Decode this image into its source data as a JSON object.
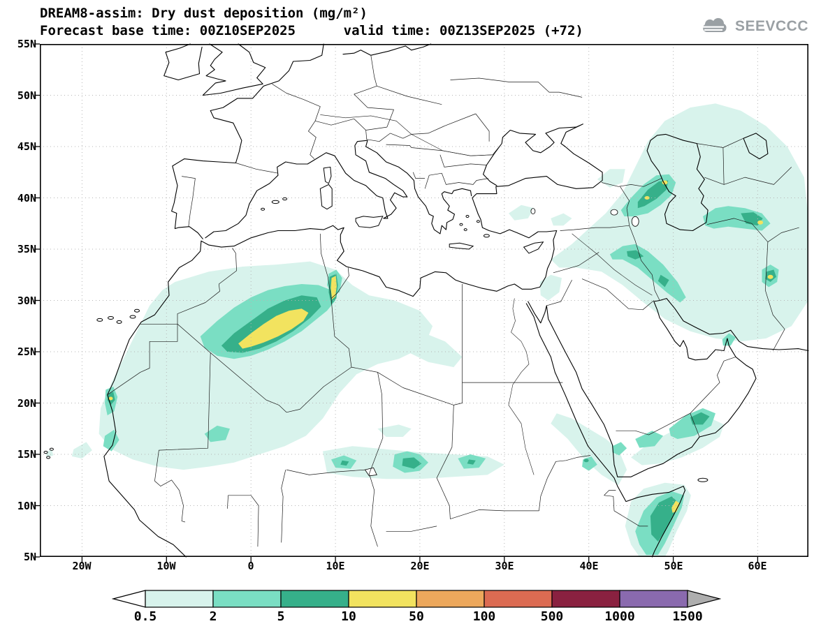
{
  "header": {
    "title_line1": "DREAM8-assim: Dry dust deposition (mg/m²)",
    "title_line2": "Forecast base time: 00Z10SEP2025      valid time: 00Z13SEP2025 (+72)",
    "logo_text": "SEEVCCC"
  },
  "axes": {
    "lat_labels": [
      "55N",
      "50N",
      "45N",
      "40N",
      "35N",
      "30N",
      "25N",
      "20N",
      "15N",
      "10N",
      "5N"
    ],
    "lon_labels": [
      "20W",
      "10W",
      "0",
      "10E",
      "20E",
      "30E",
      "40E",
      "50E",
      "60E"
    ]
  },
  "colorbar": {
    "labels": [
      "0.5",
      "2",
      "5",
      "10",
      "50",
      "100",
      "500",
      "1000",
      "1500"
    ]
  },
  "palette": {
    "c0": "#ffffff",
    "c1": "#d8f3ec",
    "c2": "#7adec3",
    "c3": "#36b08a",
    "c4": "#f2e35f",
    "c5": "#eda85c",
    "c6": "#dc6b52",
    "c7": "#8a2140",
    "c8": "#8a6aae",
    "c9": "#aeaeae"
  },
  "chart_data": {
    "type": "heatmap",
    "title": "DREAM8-assim: Dry dust deposition (mg/m²)",
    "model": "DREAM8-assim",
    "variable": "Dry dust deposition",
    "units": "mg/m²",
    "forecast_base_time": "00Z10SEP2025",
    "valid_time": "00Z13SEP2025",
    "lead_hours": 72,
    "projection": "latlon",
    "lon_range_deg": [
      -25,
      66
    ],
    "lat_range_deg": [
      5,
      55
    ],
    "lat_ticks": [
      "55N",
      "50N",
      "45N",
      "40N",
      "35N",
      "30N",
      "25N",
      "20N",
      "15N",
      "10N",
      "5N"
    ],
    "lon_ticks": [
      "20W",
      "10W",
      "0",
      "10E",
      "20E",
      "30E",
      "40E",
      "50E",
      "60E"
    ],
    "grid": "dotted, 5° latitude / 10° longitude",
    "legend_position": "bottom",
    "colorbar_levels_mg_m2": [
      0.5,
      2,
      5,
      10,
      50,
      100,
      500,
      1000,
      1500
    ],
    "colorbar_colors": [
      "#ffffff",
      "#d8f3ec",
      "#7adec3",
      "#36b08a",
      "#f2e35f",
      "#eda85c",
      "#dc6b52",
      "#8a2140",
      "#8a6aae",
      "#aeaeae"
    ],
    "max_shaded_range_on_map": "10-50 mg/m²",
    "deposition_maxima": [
      {
        "region": "Central Algeria / Grand Erg (0-7E, 25-29N)",
        "value_range_mg_m2": "10-50"
      },
      {
        "region": "Tunisia-Libya border strip (9.5-10.5E, 29-32.5N)",
        "value_range_mg_m2": "10-50"
      },
      {
        "region": "Mauritanian coast near 17W, 20.5N",
        "value_range_mg_m2": "10-50"
      },
      {
        "region": "NW Iran / Azerbaijan near Caspian (46-50E, 39-42N)",
        "value_range_mg_m2": "10-50"
      },
      {
        "region": "NE Iran / Turkmenistan (57-61E, 37-39N)",
        "value_range_mg_m2": "10-50"
      },
      {
        "region": "Sistan basin, E Iran (61-62E, 31.5-33N)",
        "value_range_mg_m2": "10-50"
      },
      {
        "region": "NE Somalia / Cape Guardafui (49-51E, 8-11N)",
        "value_range_mg_m2": "10-50"
      },
      {
        "region": "Sahel: Niger-Chad-Sudan belt (9-28E, 13-15N)",
        "value_range_mg_m2": "5-10"
      },
      {
        "region": "Southern Arabia (50-55E, 17-20N)",
        "value_range_mg_m2": "5-10"
      },
      {
        "region": "Southern Red Sea coasts (39-45E, 13-16.5N)",
        "value_range_mg_m2": "5-10"
      },
      {
        "region": "Broad 0.5-2 background over Sahara, Middle East, Caspian region and Horn of Africa",
        "value_range_mg_m2": "0.5-2"
      }
    ]
  }
}
